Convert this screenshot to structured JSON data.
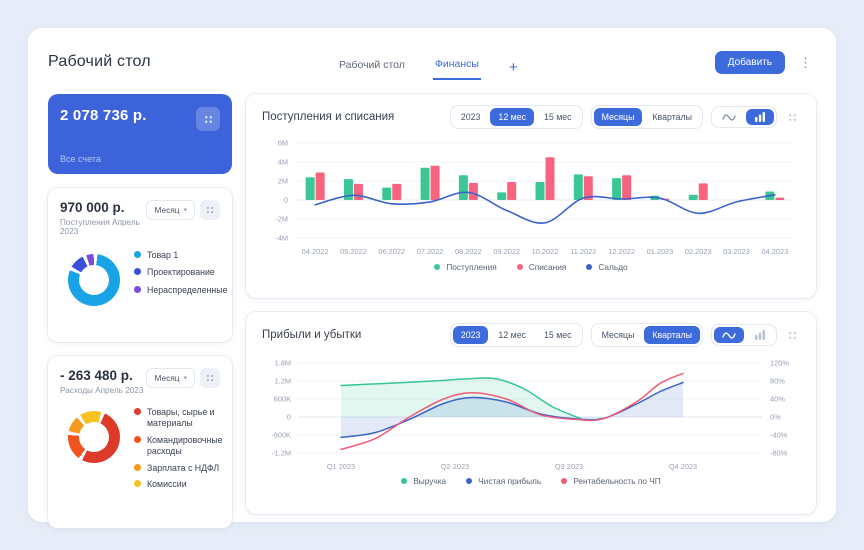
{
  "header": {
    "title": "Рабочий стол",
    "tabs": [
      {
        "label": "Рабочий стол"
      },
      {
        "label": "Финансы"
      }
    ],
    "add_tab": "+",
    "add_button": "Добавить"
  },
  "accounts_card": {
    "total": "2 078 736 р.",
    "subtitle": "Все счета"
  },
  "income_card": {
    "value": "970 000 р.",
    "subtitle": "Поступления Апрель 2023",
    "period": "Месяц",
    "donut_rotate": 8,
    "segments": [
      {
        "label": "Товар 1",
        "color": "#17A3E5",
        "value": 85
      },
      {
        "label": "Проектирование",
        "color": "#3A50D9",
        "value": 10
      },
      {
        "label": "Нераспределенные",
        "color": "#7B4BDB",
        "value": 5
      }
    ]
  },
  "expenses_card": {
    "value": "- 263 480 р.",
    "subtitle": "Расходы Апрель 2023",
    "period": "Месяц",
    "donut_rotate": 25,
    "segments": [
      {
        "label": "Товары, сырье и материалы",
        "color": "#DD3A2A",
        "value": 56
      },
      {
        "label": "Командировочные расходы",
        "color": "#F0541E",
        "value": 18
      },
      {
        "label": "Зарплата с НДФЛ",
        "color": "#F59A1C",
        "value": 11
      },
      {
        "label": "Комиссии",
        "color": "#F8C223",
        "value": 15
      }
    ]
  },
  "chart_data": [
    {
      "type": "bar",
      "title": "Поступления и списания",
      "controls": {
        "ranges": [
          "2023",
          "12 мес",
          "15 мес"
        ],
        "granularities": [
          "Месяцы",
          "Кварталы"
        ]
      },
      "categories": [
        "04.2022",
        "05.2022",
        "06.2022",
        "07.2022",
        "08.2022",
        "09.2022",
        "10.2022",
        "11.2022",
        "12.2022",
        "01.2023",
        "02.2023",
        "03.2023",
        "04.2023"
      ],
      "yticks": [
        "6M",
        "4M",
        "2M",
        "0",
        "-2M",
        "-4M"
      ],
      "ylim": [
        -4,
        6
      ],
      "unit": "M",
      "series": [
        {
          "name": "Поступления",
          "kind": "bar",
          "color": "#3AC795",
          "values": [
            2.4,
            2.2,
            1.3,
            3.4,
            2.6,
            0.8,
            1.9,
            2.7,
            2.3,
            0.45,
            0.55,
            0,
            0.9
          ]
        },
        {
          "name": "Списания",
          "kind": "bar",
          "color": "#F8647F",
          "values": [
            2.9,
            1.7,
            1.7,
            3.6,
            1.8,
            1.9,
            4.5,
            2.5,
            2.6,
            0.15,
            1.75,
            0,
            0.25
          ]
        },
        {
          "name": "Сальдо",
          "kind": "line",
          "color": "#3A63C9",
          "values": [
            -0.5,
            0.5,
            -0.4,
            -0.2,
            0.8,
            -1.1,
            -2.4,
            0.2,
            0.1,
            0.2,
            -1.4,
            -0.2,
            0.55
          ]
        }
      ]
    },
    {
      "type": "area",
      "title": "Прибыли и убытки",
      "controls": {
        "ranges": [
          "2023",
          "12 мес",
          "15 мес"
        ],
        "granularities": [
          "Месяцы",
          "Кварталы"
        ]
      },
      "x_labels": [
        "Q1 2023",
        "Q2 2023",
        "Q3 2023",
        "Q4 2023"
      ],
      "left_ticks": [
        "1.8M",
        "1.2M",
        "600K",
        "0",
        "-600K",
        "-1.2M"
      ],
      "right_ticks": [
        "120%",
        "80%",
        "40%",
        "0%",
        "-40%",
        "-80%"
      ],
      "pct_to_left_scale": 0.015,
      "series": [
        {
          "name": "Выручка",
          "color": "#35C597",
          "axis": "left",
          "area": true,
          "points": [
            [
              0,
              1.05
            ],
            [
              0.4,
              1.12
            ],
            [
              0.8,
              1.2
            ],
            [
              1.1,
              1.27
            ],
            [
              1.35,
              1.28
            ],
            [
              1.6,
              0.95
            ],
            [
              1.85,
              0.35
            ],
            [
              2.1,
              -0.05
            ]
          ]
        },
        {
          "name": "Чистая прибыль",
          "color": "#3A63C9",
          "axis": "left",
          "area": true,
          "points": [
            [
              0,
              -0.68
            ],
            [
              0.3,
              -0.52
            ],
            [
              0.6,
              -0.08
            ],
            [
              0.9,
              0.45
            ],
            [
              1.15,
              0.65
            ],
            [
              1.45,
              0.5
            ],
            [
              1.75,
              0.1
            ],
            [
              2.05,
              -0.06
            ],
            [
              2.3,
              -0.05
            ],
            [
              2.6,
              0.45
            ],
            [
              2.8,
              0.85
            ],
            [
              3,
              1.15
            ]
          ]
        },
        {
          "name": "Рентабельность по ЧП",
          "color": "#F05B76",
          "axis": "right",
          "area": false,
          "points": [
            [
              0,
              -72
            ],
            [
              0.3,
              -48
            ],
            [
              0.6,
              0
            ],
            [
              0.9,
              40
            ],
            [
              1.15,
              54
            ],
            [
              1.45,
              40
            ],
            [
              1.75,
              5
            ],
            [
              2.05,
              -5
            ],
            [
              2.3,
              -4
            ],
            [
              2.6,
              35
            ],
            [
              2.8,
              75
            ],
            [
              3,
              97
            ]
          ]
        }
      ]
    }
  ]
}
